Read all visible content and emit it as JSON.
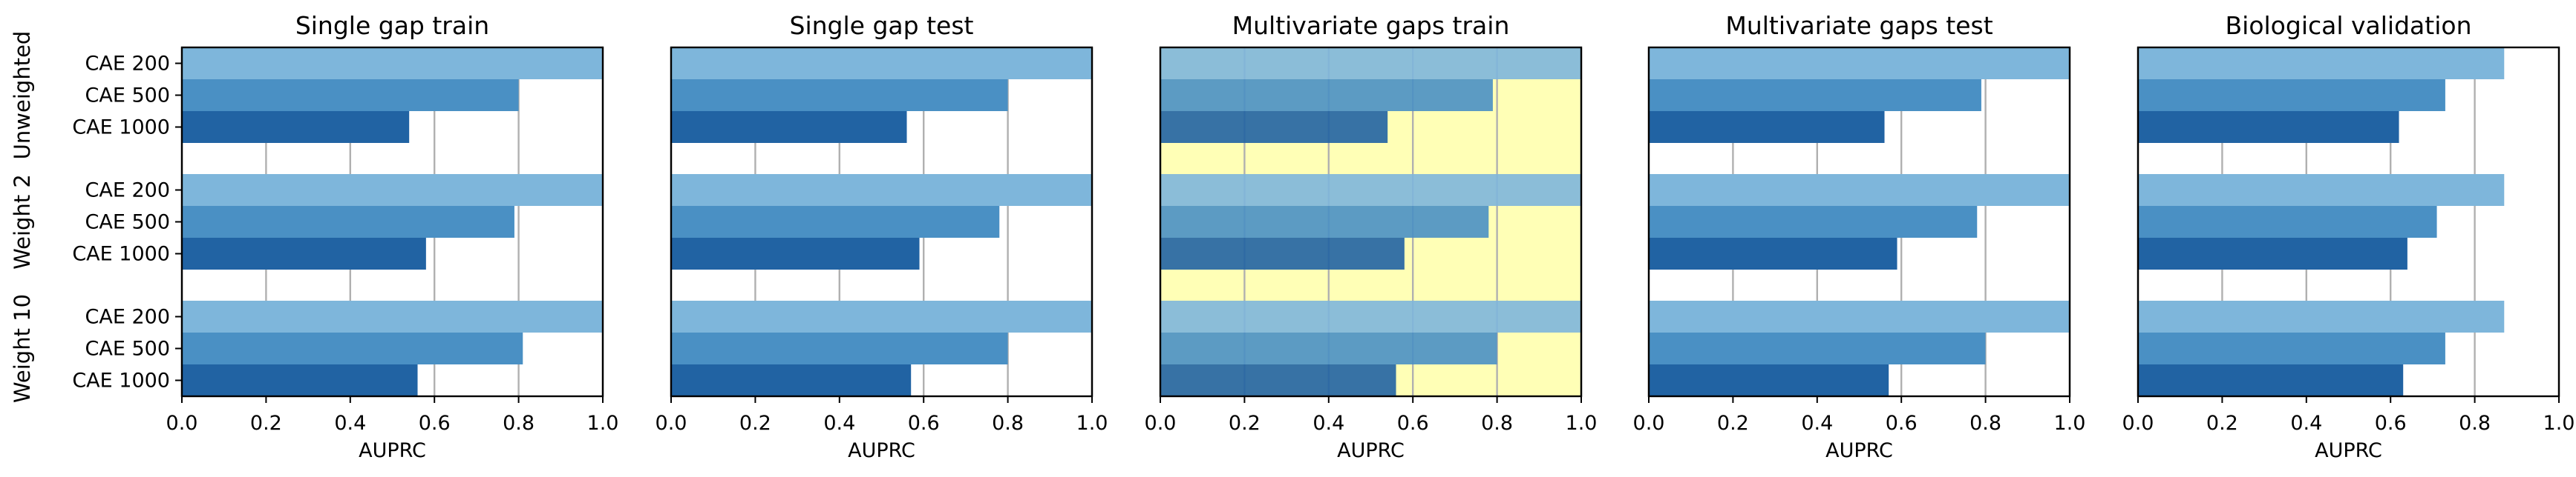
{
  "chart_data": {
    "type": "bar",
    "orientation": "horizontal",
    "xlim": [
      0,
      1
    ],
    "grid": "vertical",
    "x_ticks": [
      "0.0",
      "0.2",
      "0.4",
      "0.6",
      "0.8",
      "1.0"
    ],
    "xlabel": "AUPRC",
    "groups": [
      "Unweighted",
      "Weight 2",
      "Weight 10"
    ],
    "categories": [
      "CAE 200",
      "CAE 500",
      "CAE 1000"
    ],
    "colors": {
      "CAE 200": "#7eb6db",
      "CAE 500": "#4a90c4",
      "CAE 1000": "#2163a3",
      "highlight": "#ffffb6"
    },
    "panels": [
      {
        "title": "Single gap train",
        "highlight": false,
        "values": [
          [
            1.0,
            0.8,
            0.54
          ],
          [
            1.0,
            0.79,
            0.58
          ],
          [
            1.0,
            0.81,
            0.56
          ]
        ]
      },
      {
        "title": "Single gap test",
        "highlight": false,
        "values": [
          [
            1.0,
            0.8,
            0.56
          ],
          [
            1.0,
            0.78,
            0.59
          ],
          [
            1.0,
            0.8,
            0.57
          ]
        ]
      },
      {
        "title": "Multivariate gaps train",
        "highlight": true,
        "values": [
          [
            1.0,
            0.79,
            0.54
          ],
          [
            1.0,
            0.78,
            0.58
          ],
          [
            1.0,
            0.8,
            0.56
          ]
        ]
      },
      {
        "title": "Multivariate gaps test",
        "highlight": false,
        "values": [
          [
            1.0,
            0.79,
            0.56
          ],
          [
            1.0,
            0.78,
            0.59
          ],
          [
            1.0,
            0.8,
            0.57
          ]
        ]
      },
      {
        "title": "Biological validation",
        "highlight": false,
        "values": [
          [
            0.87,
            0.73,
            0.62
          ],
          [
            0.87,
            0.71,
            0.64
          ],
          [
            0.87,
            0.73,
            0.63
          ]
        ]
      }
    ]
  }
}
